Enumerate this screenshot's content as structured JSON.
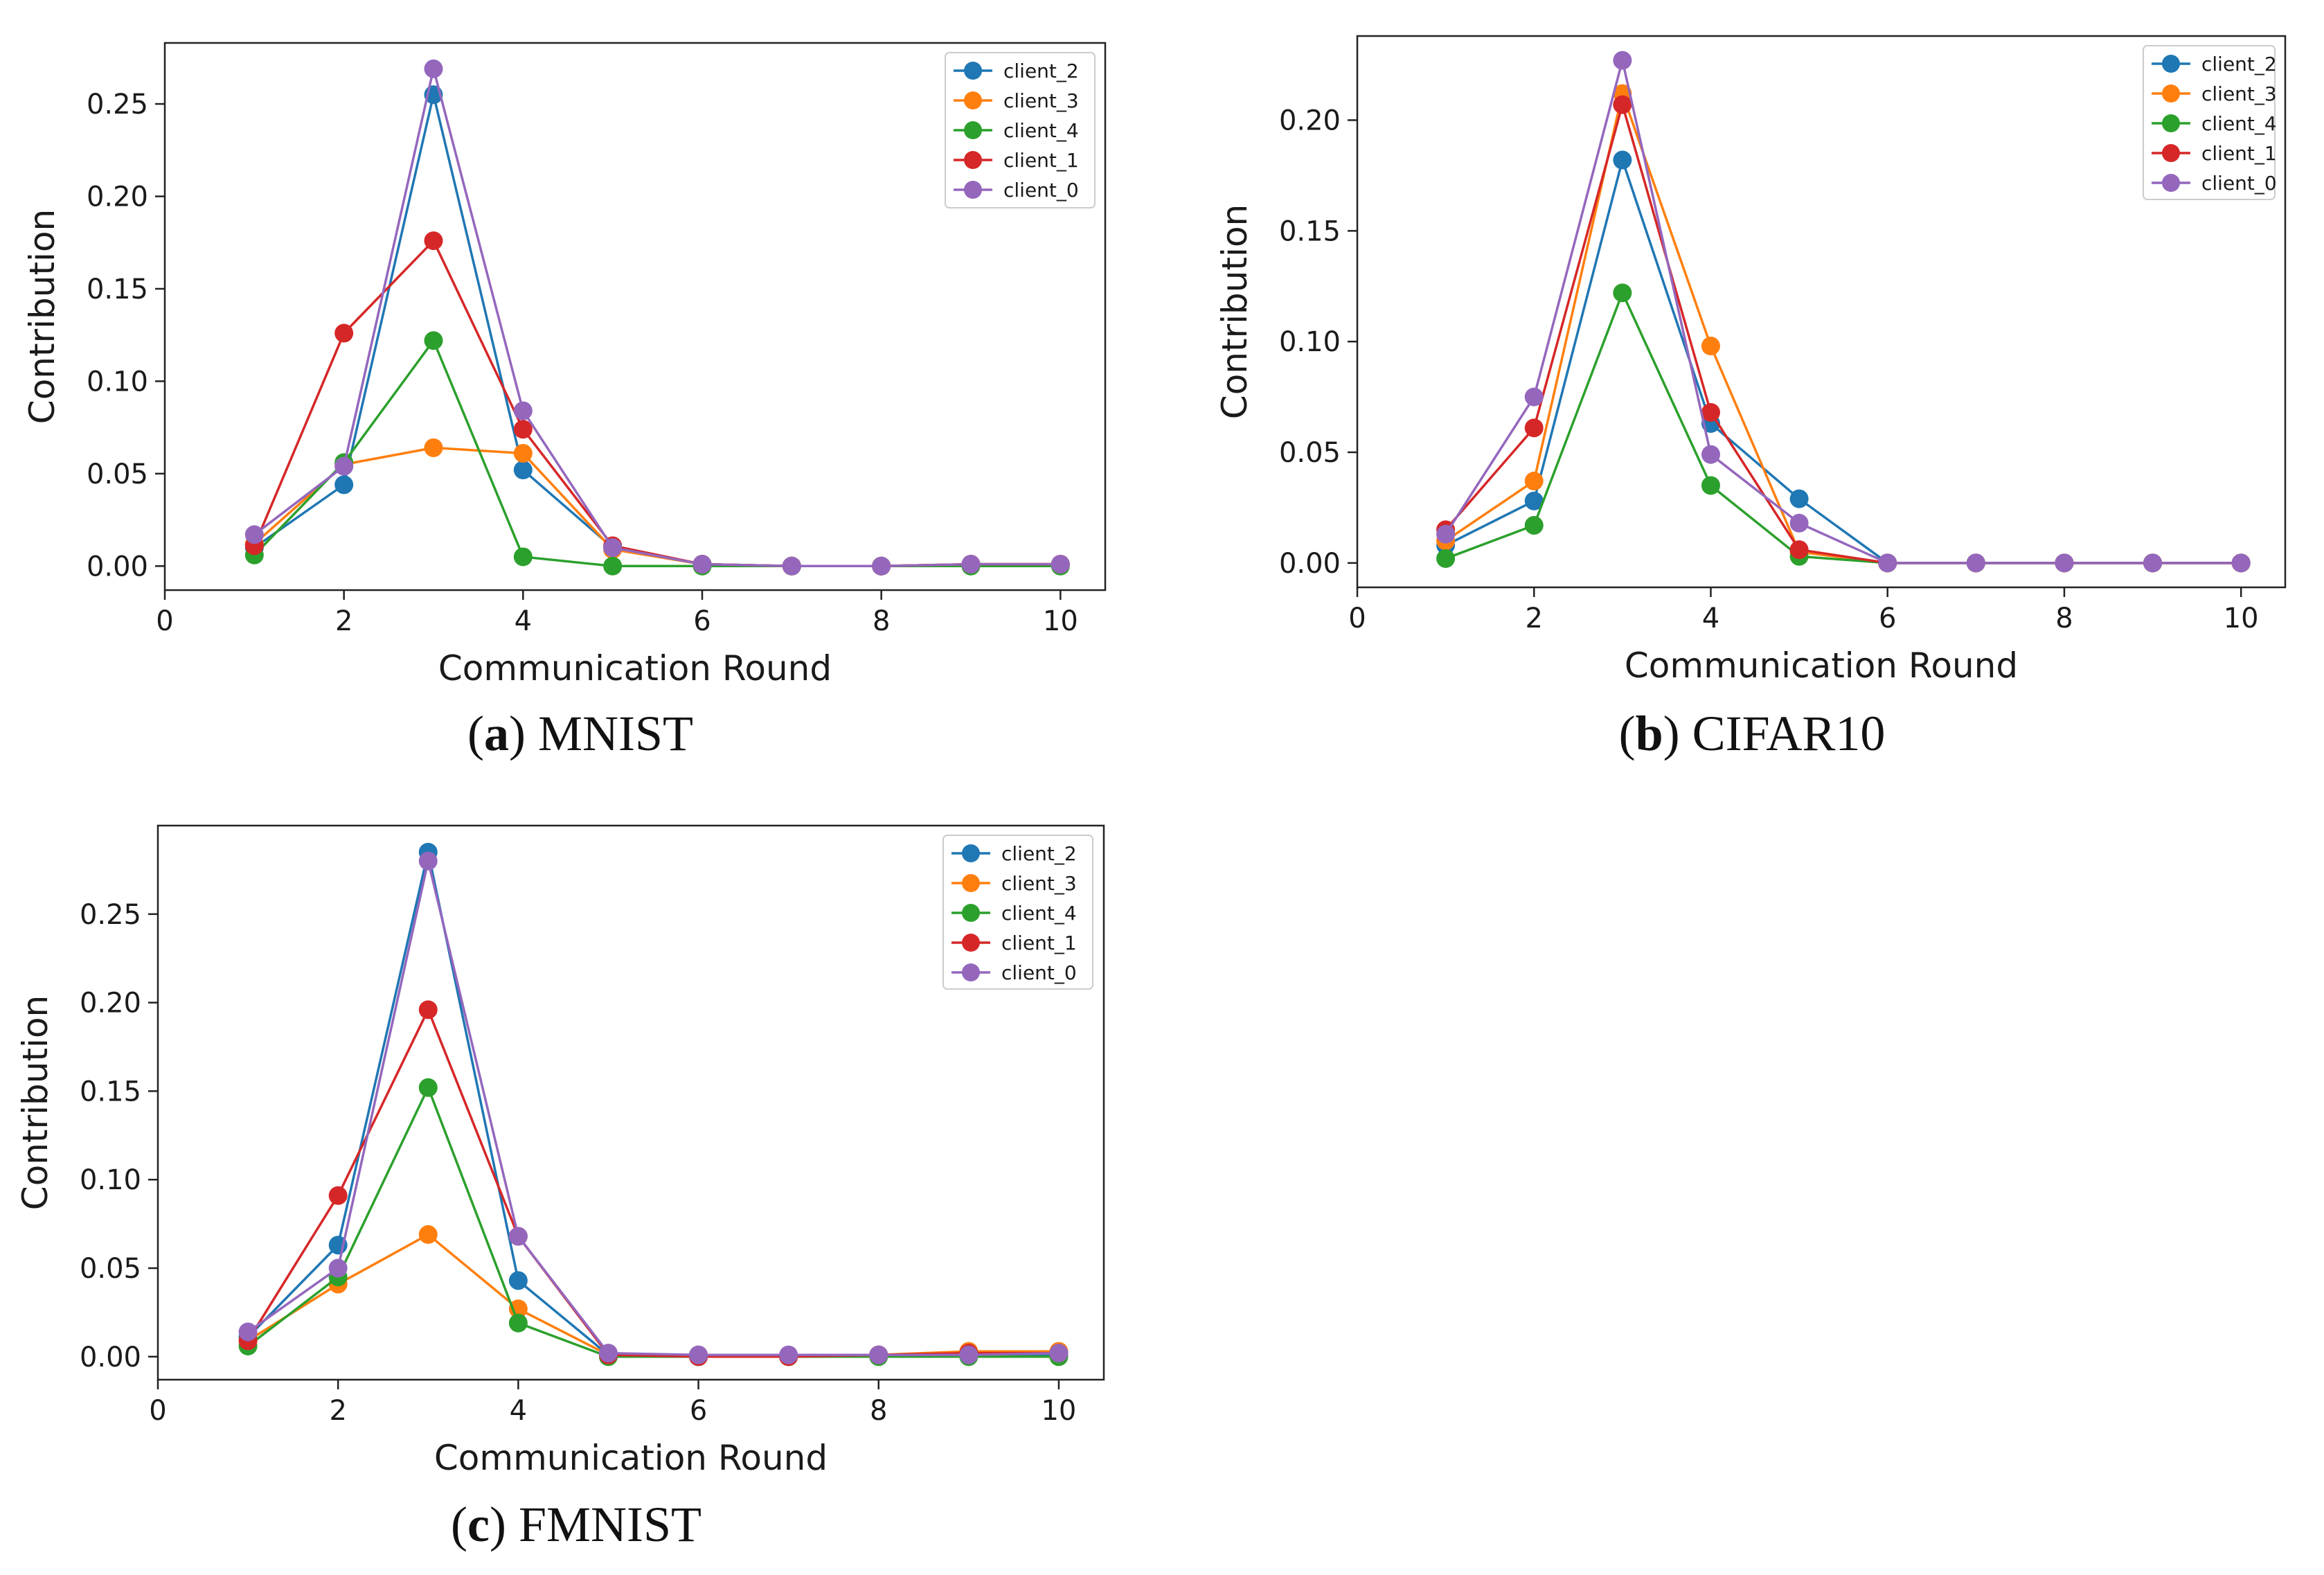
{
  "figure": {
    "panels": [
      {
        "letter": "a",
        "dataset": "MNIST"
      },
      {
        "letter": "b",
        "dataset": "CIFAR10"
      },
      {
        "letter": "c",
        "dataset": "FMNIST"
      }
    ]
  },
  "legend_colors": {
    "client_2": "#1f77b4",
    "client_3": "#ff7f0e",
    "client_4": "#2ca02c",
    "client_1": "#d62728",
    "client_0": "#9467bd"
  },
  "chart_data": [
    {
      "type": "line",
      "title": "MNIST",
      "xlabel": "Communication Round",
      "ylabel": "Contribution",
      "xlim": [
        0,
        10.5
      ],
      "ylim": [
        -0.013,
        0.283
      ],
      "xticks": [
        0,
        2,
        4,
        6,
        8,
        10
      ],
      "xtick_labels": [
        "0",
        "2",
        "4",
        "6",
        "8",
        "10"
      ],
      "yticks": [
        0,
        0.05,
        0.1,
        0.15,
        0.2,
        0.25
      ],
      "ytick_labels": [
        "0.00",
        "0.05",
        "0.10",
        "0.15",
        "0.20",
        "0.25"
      ],
      "legend_position": "top-right",
      "x": [
        1,
        2,
        3,
        4,
        5,
        6,
        7,
        8,
        9,
        10
      ],
      "series": [
        {
          "name": "client_2",
          "values": [
            0.01,
            0.044,
            0.255,
            0.052,
            0.01,
            0.001,
            0.0,
            0.0,
            0.001,
            0.001
          ]
        },
        {
          "name": "client_3",
          "values": [
            0.012,
            0.055,
            0.064,
            0.061,
            0.009,
            0.001,
            0.0,
            0.0,
            0.001,
            0.001
          ]
        },
        {
          "name": "client_4",
          "values": [
            0.006,
            0.056,
            0.122,
            0.005,
            0.0,
            0.0,
            0.0,
            0.0,
            0.0,
            0.0
          ]
        },
        {
          "name": "client_1",
          "values": [
            0.011,
            0.126,
            0.176,
            0.074,
            0.011,
            0.001,
            0.0,
            0.0,
            0.001,
            0.001
          ]
        },
        {
          "name": "client_0",
          "values": [
            0.017,
            0.054,
            0.269,
            0.084,
            0.01,
            0.001,
            0.0,
            0.0,
            0.001,
            0.001
          ]
        }
      ]
    },
    {
      "type": "line",
      "title": "CIFAR10",
      "xlabel": "Communication Round",
      "ylabel": "Contribution",
      "xlim": [
        0,
        10.5
      ],
      "ylim": [
        -0.011,
        0.238
      ],
      "xticks": [
        0,
        2,
        4,
        6,
        8,
        10
      ],
      "xtick_labels": [
        "0",
        "2",
        "4",
        "6",
        "8",
        "10"
      ],
      "yticks": [
        0,
        0.05,
        0.1,
        0.15,
        0.2
      ],
      "ytick_labels": [
        "0.00",
        "0.05",
        "0.10",
        "0.15",
        "0.20"
      ],
      "legend_position": "top-right",
      "x": [
        1,
        2,
        3,
        4,
        5,
        6,
        7,
        8,
        9,
        10
      ],
      "series": [
        {
          "name": "client_2",
          "values": [
            0.008,
            0.028,
            0.182,
            0.063,
            0.029,
            0.0,
            0.0,
            0.0,
            0.0,
            0.0
          ]
        },
        {
          "name": "client_3",
          "values": [
            0.01,
            0.037,
            0.212,
            0.098,
            0.005,
            0.0,
            0.0,
            0.0,
            0.0,
            0.0
          ]
        },
        {
          "name": "client_4",
          "values": [
            0.002,
            0.017,
            0.122,
            0.035,
            0.003,
            0.0,
            0.0,
            0.0,
            0.0,
            0.0
          ]
        },
        {
          "name": "client_1",
          "values": [
            0.015,
            0.061,
            0.207,
            0.068,
            0.006,
            0.0,
            0.0,
            0.0,
            0.0,
            0.0
          ]
        },
        {
          "name": "client_0",
          "values": [
            0.013,
            0.075,
            0.227,
            0.049,
            0.018,
            0.0,
            0.0,
            0.0,
            0.0,
            0.0
          ]
        }
      ]
    },
    {
      "type": "line",
      "title": "FMNIST",
      "xlabel": "Communication Round",
      "ylabel": "Contribution",
      "xlim": [
        0,
        10.5
      ],
      "ylim": [
        -0.013,
        0.3
      ],
      "xticks": [
        0,
        2,
        4,
        6,
        8,
        10
      ],
      "xtick_labels": [
        "0",
        "2",
        "4",
        "6",
        "8",
        "10"
      ],
      "yticks": [
        0,
        0.05,
        0.1,
        0.15,
        0.2,
        0.25
      ],
      "ytick_labels": [
        "0.00",
        "0.05",
        "0.10",
        "0.15",
        "0.20",
        "0.25"
      ],
      "legend_position": "top-right",
      "x": [
        1,
        2,
        3,
        4,
        5,
        6,
        7,
        8,
        9,
        10
      ],
      "series": [
        {
          "name": "client_2",
          "values": [
            0.011,
            0.063,
            0.285,
            0.043,
            0.001,
            0.0,
            0.0,
            0.001,
            0.001,
            0.001
          ]
        },
        {
          "name": "client_3",
          "values": [
            0.009,
            0.041,
            0.069,
            0.027,
            0.001,
            0.001,
            0.0,
            0.001,
            0.003,
            0.003
          ]
        },
        {
          "name": "client_4",
          "values": [
            0.006,
            0.045,
            0.152,
            0.019,
            0.0,
            0.0,
            0.0,
            0.0,
            0.0,
            0.0
          ]
        },
        {
          "name": "client_1",
          "values": [
            0.009,
            0.091,
            0.196,
            0.068,
            0.001,
            0.0,
            0.0,
            0.001,
            0.002,
            0.002
          ]
        },
        {
          "name": "client_0",
          "values": [
            0.014,
            0.05,
            0.28,
            0.068,
            0.002,
            0.001,
            0.001,
            0.001,
            0.001,
            0.002
          ]
        }
      ]
    }
  ]
}
